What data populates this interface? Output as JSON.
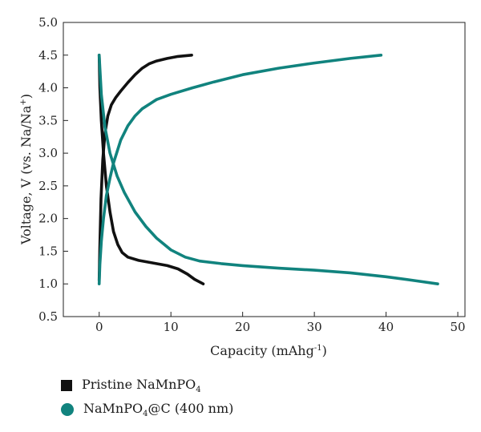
{
  "chart_data": {
    "type": "line",
    "xlabel": "Capacity (mAhg",
    "xlabel_sup": "-1",
    "xlabel_end": ")",
    "ylabel": "Voltage, V (vs. Na/Na",
    "ylabel_sup": "+",
    "ylabel_end": ")",
    "xlim": [
      -5,
      51
    ],
    "ylim": [
      0.5,
      5.0
    ],
    "xticks": [
      0,
      10,
      20,
      30,
      40,
      50
    ],
    "yticks": [
      0.5,
      1.0,
      1.5,
      2.0,
      2.5,
      3.0,
      3.5,
      4.0,
      4.5,
      5.0
    ],
    "ytick_labels": [
      "0.5",
      "1.0",
      "1.5",
      "2.0",
      "2.5",
      "3.0",
      "3.5",
      "4.0",
      "4.5",
      "5.0"
    ],
    "grid": false,
    "legend_placement": "bottom-left, below plot",
    "series": [
      {
        "name": "Pristine NaMnPO",
        "name_sub": "4",
        "name_end": "",
        "color": "#111111",
        "marker": "square",
        "curves": [
          {
            "x": [
              0.0,
              0.1,
              0.25,
              0.5,
              0.8,
              1.2,
              1.7,
              2.3,
              3.0,
              4.0,
              5.0,
              6.0,
              7.0,
              8.0,
              9.5,
              11.0,
              12.9
            ],
            "y": [
              1.05,
              1.6,
              2.3,
              2.9,
              3.3,
              3.57,
              3.74,
              3.85,
              3.95,
              4.08,
              4.2,
              4.3,
              4.37,
              4.41,
              4.45,
              4.48,
              4.5
            ]
          },
          {
            "x": [
              0.0,
              0.1,
              0.3,
              0.6,
              1.0,
              1.5,
              2.0,
              2.6,
              3.2,
              4.0,
              5.5,
              7.5,
              9.5,
              11.0,
              12.3,
              13.3,
              14.5
            ],
            "y": [
              4.5,
              4.0,
              3.5,
              3.0,
              2.5,
              2.1,
              1.8,
              1.6,
              1.48,
              1.41,
              1.36,
              1.32,
              1.28,
              1.23,
              1.15,
              1.07,
              1.0
            ]
          }
        ]
      },
      {
        "name": "NaMnPO",
        "name_sub": "4",
        "name_end": "@C (400 nm)",
        "color": "#11837e",
        "marker": "circle",
        "curves": [
          {
            "x": [
              0.0,
              0.1,
              0.3,
              0.6,
              1.0,
              1.5,
              2.0,
              3.0,
              4.0,
              5.0,
              6.0,
              8.0,
              10.0,
              13.0,
              16.0,
              20.0,
              25.0,
              30.0,
              35.0,
              39.3
            ],
            "y": [
              1.0,
              1.3,
              1.65,
              2.0,
              2.35,
              2.62,
              2.85,
              3.2,
              3.42,
              3.57,
              3.68,
              3.82,
              3.9,
              4.0,
              4.09,
              4.2,
              4.3,
              4.38,
              4.45,
              4.5
            ]
          },
          {
            "x": [
              0.0,
              0.3,
              0.8,
              1.5,
              2.5,
              3.5,
              5.0,
              6.5,
              8.0,
              10.0,
              12.0,
              14.0,
              17.0,
              20.0,
              25.0,
              30.0,
              35.0,
              40.0,
              44.0,
              47.2
            ],
            "y": [
              4.5,
              3.9,
              3.4,
              3.0,
              2.65,
              2.4,
              2.1,
              1.88,
              1.7,
              1.52,
              1.41,
              1.35,
              1.31,
              1.28,
              1.24,
              1.21,
              1.17,
              1.11,
              1.05,
              1.0
            ]
          }
        ]
      }
    ]
  }
}
